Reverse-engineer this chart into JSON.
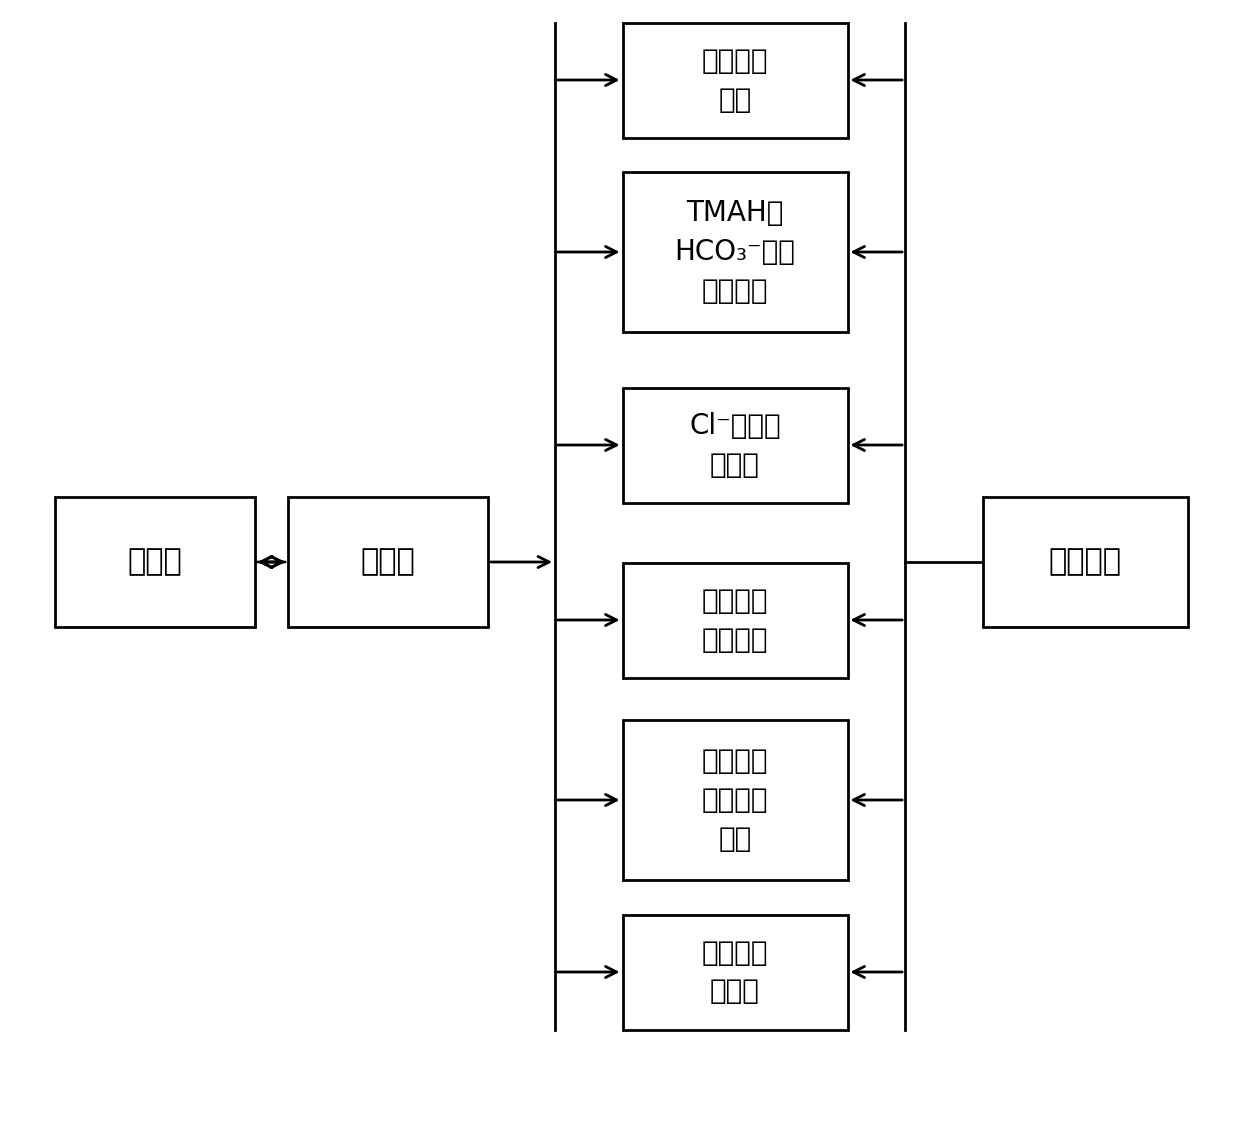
{
  "bg_color": "#ffffff",
  "box_edge_color": "#000000",
  "line_color": "#000000",
  "text_color": "#000000",
  "font_size": 20,
  "computer_label": "计算机",
  "plc_label": "工控机",
  "sample_label": "进样单元",
  "det_labels": [
    "色度检测\n装置",
    "TMAH与\nHCO3-浓度\n检测装置",
    "Cl-浓度检\n测装置",
    "甲醇浓度\n检测装置",
    "金属离子\n浓度检测\n装置",
    "颗粒数检\n测装置"
  ],
  "det_labels_mixed": [
    [
      "色度检测",
      "装置"
    ],
    [
      "TMAH与",
      "HCO₃⁻浓度",
      "检测装置"
    ],
    [
      "Cl⁻浓度检",
      "测装置"
    ],
    [
      "甲醇浓度",
      "检测装置"
    ],
    [
      "金属离子",
      "浓度检测",
      "装置"
    ],
    [
      "颗粒数检",
      "测装置"
    ]
  ]
}
